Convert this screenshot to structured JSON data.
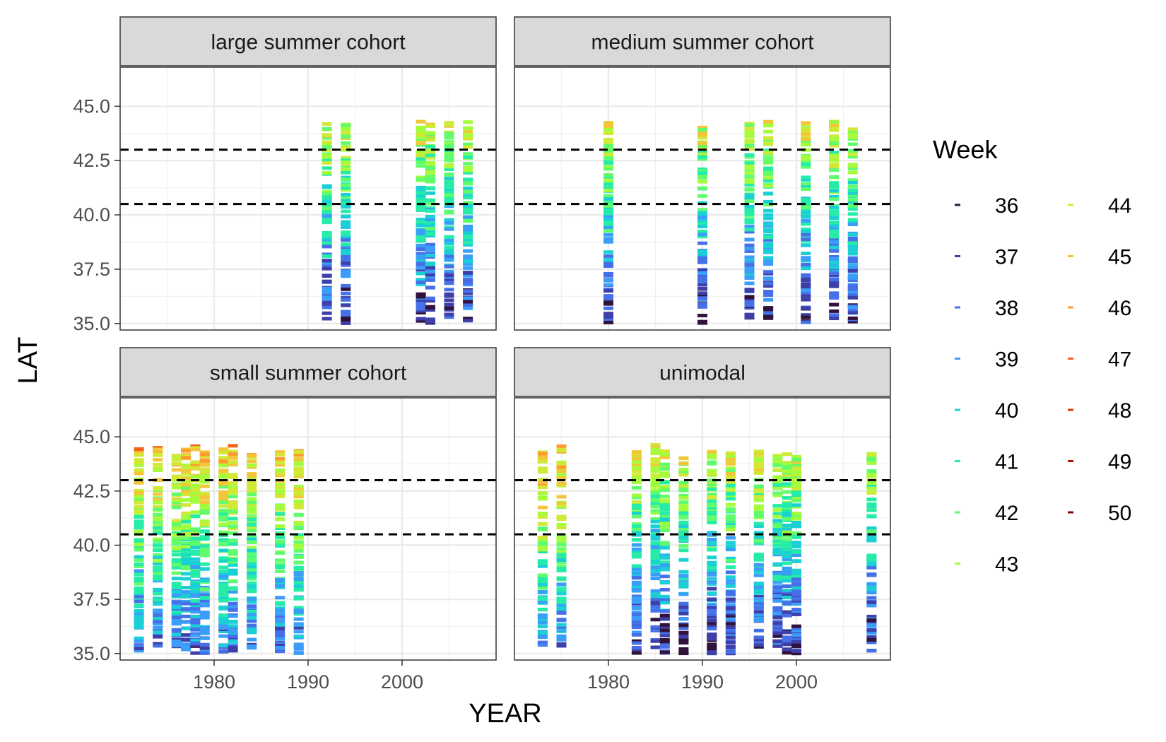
{
  "chart_data": {
    "type": "scatter",
    "title": "",
    "xlabel": "YEAR",
    "ylabel": "LAT",
    "xlim": [
      1970,
      2010
    ],
    "ylim": [
      34.7,
      46.8
    ],
    "x_ticks": [
      1980,
      1990,
      2000
    ],
    "x_tick_labels": [
      "1980",
      "1990",
      "2000"
    ],
    "y_ticks": [
      35.0,
      37.5,
      40.0,
      42.5,
      45.0
    ],
    "y_tick_labels": [
      "35.0",
      "37.5",
      "40.0",
      "42.5",
      "45.0"
    ],
    "reference_lines": [
      40.5,
      43.0
    ],
    "grid": true,
    "facet_layout": "2x2",
    "legend": {
      "title": "Week",
      "placement": "right",
      "entries": [
        {
          "label": "36",
          "color": "#30123B"
        },
        {
          "label": "37",
          "color": "#3E3FA8"
        },
        {
          "label": "38",
          "color": "#4670E8"
        },
        {
          "label": "39",
          "color": "#3A9EF9"
        },
        {
          "label": "40",
          "color": "#1BD0D5"
        },
        {
          "label": "41",
          "color": "#25ECA7"
        },
        {
          "label": "42",
          "color": "#61FC6C"
        },
        {
          "label": "43",
          "color": "#A4FC3C"
        },
        {
          "label": "44",
          "color": "#D1E935"
        },
        {
          "label": "45",
          "color": "#F3C63A"
        },
        {
          "label": "46",
          "color": "#FE9B2D"
        },
        {
          "label": "47",
          "color": "#F36315"
        },
        {
          "label": "48",
          "color": "#D93806"
        },
        {
          "label": "49",
          "color": "#B11901"
        },
        {
          "label": "50",
          "color": "#7A0403"
        }
      ]
    },
    "facets": [
      {
        "name": "large summer cohort",
        "years": [
          {
            "x": 1992,
            "lat_min": 35.0,
            "lat_max": 44.2
          },
          {
            "x": 1994,
            "lat_min": 35.0,
            "lat_max": 44.2
          },
          {
            "x": 2002,
            "lat_min": 35.1,
            "lat_max": 44.3
          },
          {
            "x": 2003,
            "lat_min": 35.0,
            "lat_max": 44.2
          },
          {
            "x": 2005,
            "lat_min": 35.2,
            "lat_max": 44.3
          },
          {
            "x": 2007,
            "lat_min": 35.0,
            "lat_max": 44.3
          }
        ]
      },
      {
        "name": "medium summer cohort",
        "years": [
          {
            "x": 1980,
            "lat_min": 35.0,
            "lat_max": 44.3
          },
          {
            "x": 1990,
            "lat_min": 35.0,
            "lat_max": 44.3
          },
          {
            "x": 1995,
            "lat_min": 35.0,
            "lat_max": 44.3
          },
          {
            "x": 1997,
            "lat_min": 35.1,
            "lat_max": 44.3
          },
          {
            "x": 2001,
            "lat_min": 35.0,
            "lat_max": 44.3
          },
          {
            "x": 2004,
            "lat_min": 35.2,
            "lat_max": 44.3
          },
          {
            "x": 2006,
            "lat_min": 35.0,
            "lat_max": 44.2
          }
        ]
      },
      {
        "name": "small summer cohort",
        "years": [
          {
            "x": 1972,
            "lat_min": 35.0,
            "lat_max": 44.6
          },
          {
            "x": 1974,
            "lat_min": 35.3,
            "lat_max": 44.5
          },
          {
            "x": 1976,
            "lat_min": 35.2,
            "lat_max": 44.4
          },
          {
            "x": 1977,
            "lat_min": 35.0,
            "lat_max": 44.5
          },
          {
            "x": 1978,
            "lat_min": 35.0,
            "lat_max": 44.6
          },
          {
            "x": 1979,
            "lat_min": 35.0,
            "lat_max": 44.3
          },
          {
            "x": 1981,
            "lat_min": 35.0,
            "lat_max": 44.5
          },
          {
            "x": 1982,
            "lat_min": 35.1,
            "lat_max": 44.7
          },
          {
            "x": 1984,
            "lat_min": 35.2,
            "lat_max": 44.3
          },
          {
            "x": 1987,
            "lat_min": 35.0,
            "lat_max": 44.3
          },
          {
            "x": 1989,
            "lat_min": 35.0,
            "lat_max": 44.4
          }
        ]
      },
      {
        "name": "unimodal",
        "years": [
          {
            "x": 1973,
            "lat_min": 35.1,
            "lat_max": 44.3
          },
          {
            "x": 1975,
            "lat_min": 35.3,
            "lat_max": 44.6
          },
          {
            "x": 1983,
            "lat_min": 35.0,
            "lat_max": 44.3
          },
          {
            "x": 1985,
            "lat_min": 35.2,
            "lat_max": 44.7
          },
          {
            "x": 1986,
            "lat_min": 35.0,
            "lat_max": 44.4
          },
          {
            "x": 1988,
            "lat_min": 35.0,
            "lat_max": 44.3
          },
          {
            "x": 1991,
            "lat_min": 35.0,
            "lat_max": 44.4
          },
          {
            "x": 1993,
            "lat_min": 35.0,
            "lat_max": 44.3
          },
          {
            "x": 1996,
            "lat_min": 35.1,
            "lat_max": 44.4
          },
          {
            "x": 1998,
            "lat_min": 35.1,
            "lat_max": 44.3
          },
          {
            "x": 1999,
            "lat_min": 35.0,
            "lat_max": 44.3
          },
          {
            "x": 2000,
            "lat_min": 35.0,
            "lat_max": 44.2
          },
          {
            "x": 2008,
            "lat_min": 35.0,
            "lat_max": 44.3
          }
        ]
      }
    ]
  }
}
